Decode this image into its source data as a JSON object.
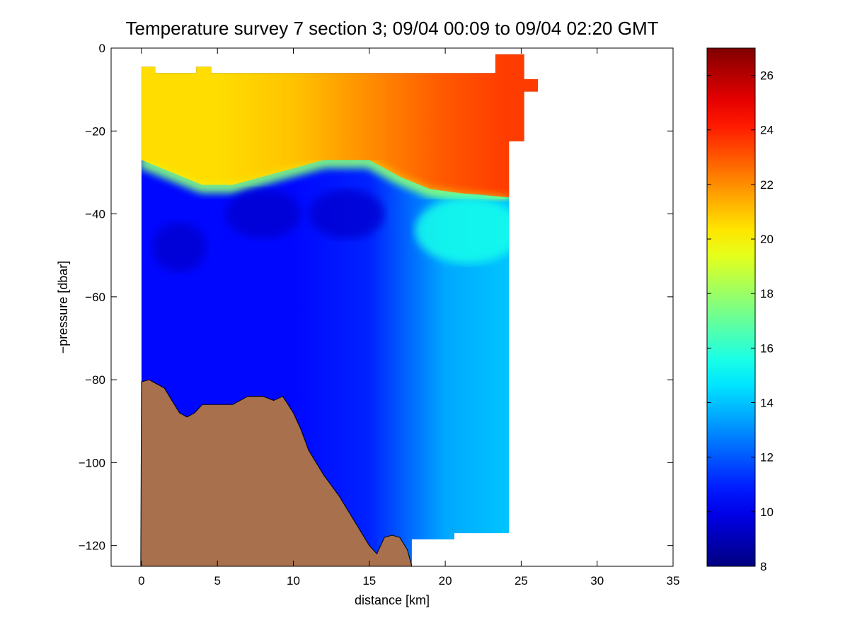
{
  "chart_data": {
    "type": "heatmap",
    "title": "Temperature survey 7 section 3; 09/04 00:09 to 09/04 02:20 GMT",
    "xlabel": "distance [km]",
    "ylabel": "−pressure [dbar]",
    "xlim": [
      -2,
      35
    ],
    "ylim": [
      -125,
      0
    ],
    "xticks": [
      0,
      5,
      10,
      15,
      20,
      25,
      30,
      35
    ],
    "yticks": [
      0,
      -20,
      -40,
      -60,
      -80,
      -100,
      -120
    ],
    "xtick_labels": [
      "0",
      "5",
      "10",
      "15",
      "20",
      "25",
      "30",
      "35"
    ],
    "ytick_labels": [
      "0",
      "−20",
      "−40",
      "−60",
      "−80",
      "−100",
      "−120"
    ],
    "colorbar": {
      "label": "",
      "range": [
        8,
        27
      ],
      "ticks": [
        8,
        10,
        12,
        14,
        16,
        18,
        20,
        22,
        24,
        26
      ],
      "tick_labels": [
        "8",
        "10",
        "12",
        "14",
        "16",
        "18",
        "20",
        "22",
        "24",
        "26"
      ],
      "colormap": "jet"
    },
    "data_extent": {
      "x": [
        0,
        24.2
      ],
      "top_pressure": -6,
      "bottom_pressure": -117
    },
    "upper_layer_temperature": {
      "x": [
        0,
        5,
        10,
        15,
        20,
        24
      ],
      "values": [
        20.5,
        20.5,
        21,
        22,
        23,
        23.5
      ]
    },
    "thermocline_depth": {
      "x": [
        0,
        2,
        4,
        6,
        8,
        10,
        12,
        13.5,
        15,
        17,
        19,
        21,
        24.2
      ],
      "depth": [
        -27,
        -30,
        -33,
        -33,
        -31,
        -29,
        -27,
        -27,
        -27,
        -31,
        -34,
        -35,
        -36
      ]
    },
    "deep_layer_temperature": {
      "x": [
        0,
        5,
        10,
        15,
        18,
        20,
        24
      ],
      "values": [
        10.5,
        10.5,
        10.5,
        11,
        12.5,
        13.5,
        14
      ]
    },
    "bathymetry": {
      "fill_color": "#a8704c",
      "x": [
        0,
        0.5,
        1,
        1.5,
        2,
        2.5,
        3,
        3.5,
        4,
        5,
        6,
        7,
        8,
        8.7,
        9.3,
        10,
        10.5,
        11,
        12,
        13,
        14,
        15,
        15.5,
        16,
        16.5,
        17,
        17.5,
        17.8
      ],
      "depth": [
        -80.5,
        -80,
        -81,
        -82,
        -85,
        -88,
        -89,
        -88,
        -86,
        -86,
        -86,
        -84,
        -84,
        -85,
        -84,
        -88,
        -92,
        -97,
        -103,
        -108,
        -114,
        -120,
        -122,
        -118,
        -117.5,
        -118,
        -121,
        -125
      ]
    }
  }
}
